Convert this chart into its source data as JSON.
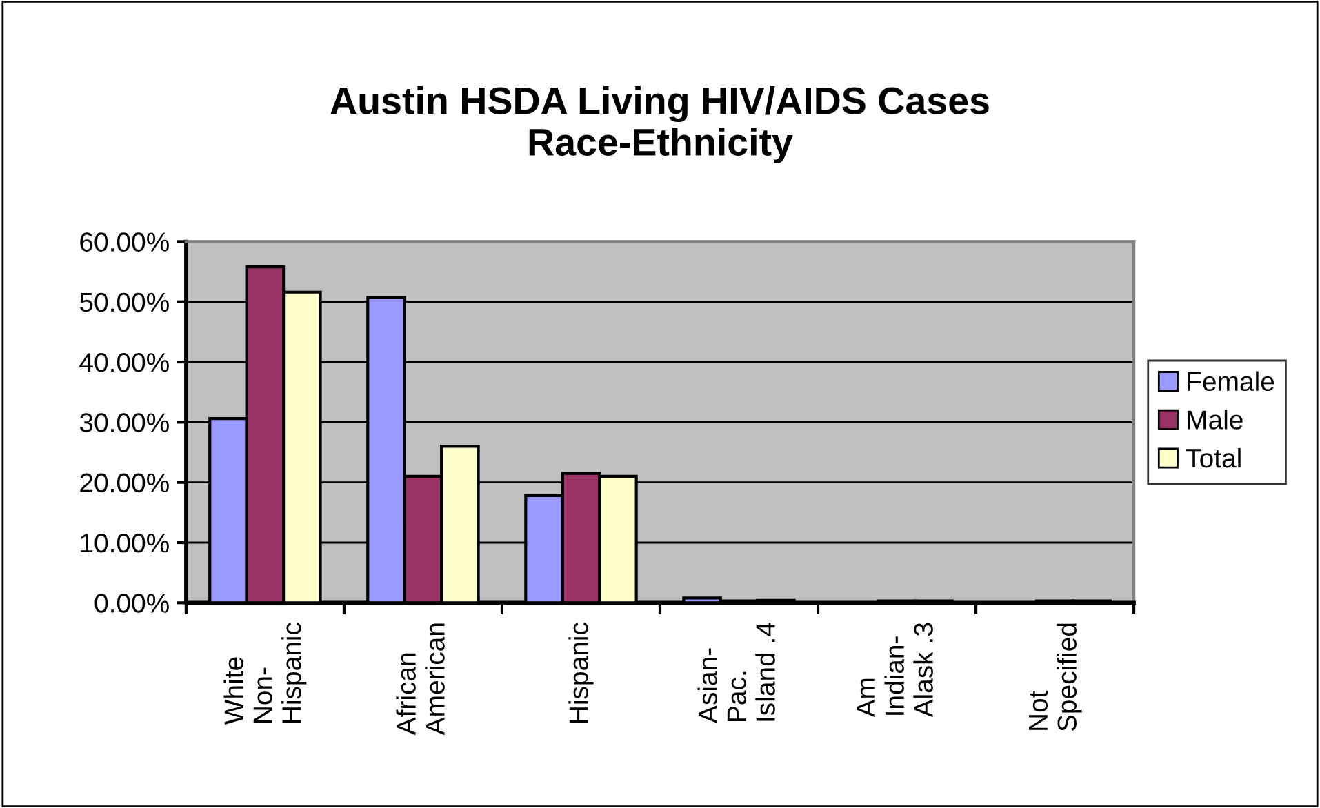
{
  "chart_data": {
    "type": "bar",
    "title": "Austin HSDA Living HIV/AIDS Cases\nRace-Ethnicity",
    "categories": [
      "White\nNon-\nHispanic",
      "African\nAmerican",
      "Hispanic",
      "Asian-\nPac.\nIsland .4",
      "Am\nIndian-\nAlask .3",
      "Not\nSpecified"
    ],
    "series": [
      {
        "name": "Female",
        "color": "#9999ff",
        "values": [
          30.6,
          50.7,
          17.8,
          0.8,
          null,
          null
        ]
      },
      {
        "name": "Male",
        "color": "#993366",
        "values": [
          55.8,
          21.0,
          21.5,
          0.3,
          0.3,
          0.3
        ]
      },
      {
        "name": "Total",
        "color": "#ffffcc",
        "values": [
          51.6,
          26.0,
          21.0,
          0.4,
          0.3,
          0.3
        ]
      }
    ],
    "ylim": [
      0,
      60
    ],
    "yticks": [
      {
        "value": 0,
        "label": "0.00%"
      },
      {
        "value": 10,
        "label": "10.00%"
      },
      {
        "value": 20,
        "label": "20.00%"
      },
      {
        "value": 30,
        "label": "30.00%"
      },
      {
        "value": 40,
        "label": "40.00%"
      },
      {
        "value": 50,
        "label": "50.00%"
      },
      {
        "value": 60,
        "label": "60.00%"
      }
    ],
    "grid": "y",
    "legend": "right"
  }
}
